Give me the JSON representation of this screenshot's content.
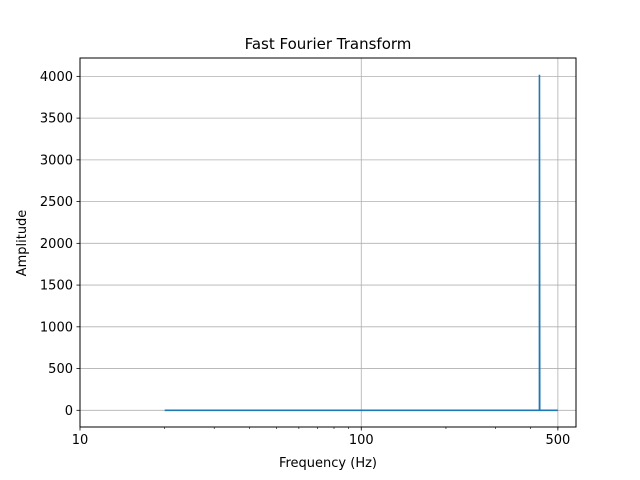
{
  "chart_data": {
    "type": "line",
    "title": "Fast Fourier Transform",
    "xlabel": "Frequency (Hz)",
    "ylabel": "Amplitude",
    "x_scale": "log",
    "xlim": [
      10,
      580
    ],
    "ylim": [
      -200,
      4220
    ],
    "x_ticks": [
      {
        "value": 10,
        "label": "10"
      },
      {
        "value": 100,
        "label": "100"
      },
      {
        "value": 500,
        "label": "500"
      }
    ],
    "y_ticks": [
      0,
      500,
      1000,
      1500,
      2000,
      2500,
      3000,
      3500,
      4000
    ],
    "grid": true,
    "series_color": "#1f77b4",
    "series": [
      {
        "x": [
          20,
          429,
          430,
          430,
          431,
          500
        ],
        "y": [
          0,
          0,
          0,
          4020,
          0,
          0
        ]
      }
    ]
  }
}
